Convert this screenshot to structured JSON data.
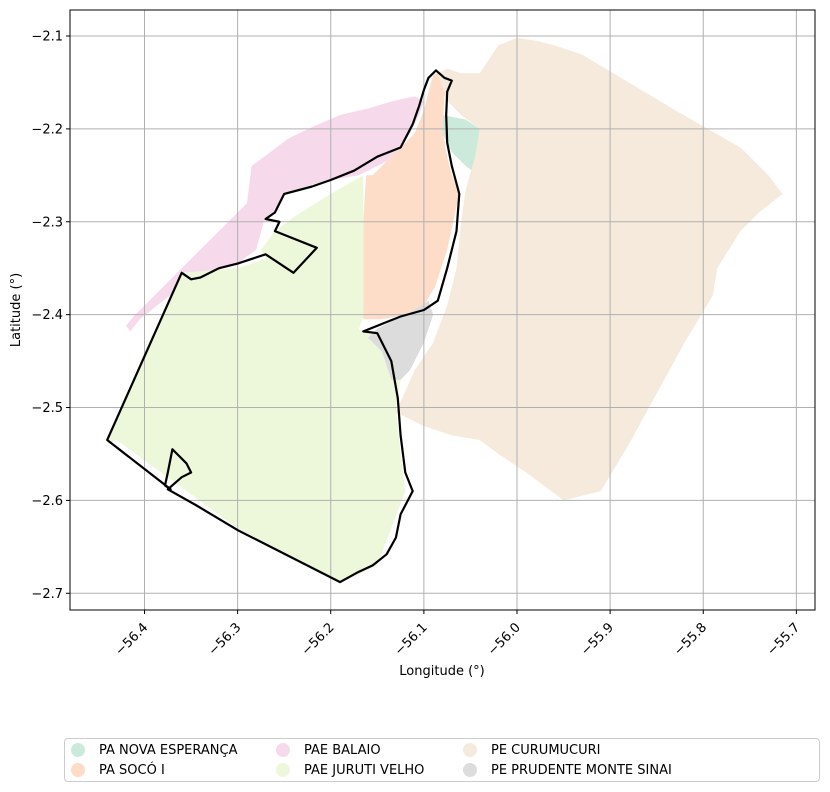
{
  "chart_data": {
    "type": "map",
    "xlabel": "Longitude (°)",
    "ylabel": "Latitude (°)",
    "xlim": [
      -56.48,
      -55.68
    ],
    "ylim": [
      -2.718,
      -2.072
    ],
    "grid": true,
    "xticks": [
      -56.4,
      -56.3,
      -56.2,
      -56.1,
      -56.0,
      -55.9,
      -55.8,
      -55.7
    ],
    "yticks": [
      -2.1,
      -2.2,
      -2.3,
      -2.4,
      -2.5,
      -2.6,
      -2.7
    ],
    "xtick_labels": [
      "−56.4",
      "−56.3",
      "−56.2",
      "−56.1",
      "−56.0",
      "−55.9",
      "−55.8",
      "−55.7"
    ],
    "ytick_labels": [
      "−2.1",
      "−2.2",
      "−2.3",
      "−2.4",
      "−2.5",
      "−2.6",
      "−2.7"
    ],
    "legend_position": "bottom",
    "layers": [
      {
        "name": "PA NOVA ESPERANÇA",
        "color": "#cbeadc",
        "polygon": [
          [
            -56.08,
            -2.185
          ],
          [
            -56.055,
            -2.19
          ],
          [
            -56.04,
            -2.2
          ],
          [
            -56.02,
            -2.195
          ],
          [
            -55.985,
            -2.2
          ],
          [
            -55.99,
            -2.215
          ],
          [
            -56.01,
            -2.22
          ],
          [
            -56.02,
            -2.25
          ],
          [
            -56.035,
            -2.255
          ],
          [
            -56.055,
            -2.24
          ],
          [
            -56.07,
            -2.225
          ],
          [
            -56.08,
            -2.205
          ]
        ]
      },
      {
        "name": "PA SOCÓ I",
        "color": "#fddcc8",
        "polygon": [
          [
            -56.155,
            -2.25
          ],
          [
            -56.14,
            -2.235
          ],
          [
            -56.125,
            -2.22
          ],
          [
            -56.11,
            -2.205
          ],
          [
            -56.1,
            -2.18
          ],
          [
            -56.095,
            -2.16
          ],
          [
            -56.09,
            -2.142
          ],
          [
            -56.078,
            -2.137
          ],
          [
            -56.07,
            -2.15
          ],
          [
            -56.078,
            -2.165
          ],
          [
            -56.08,
            -2.2
          ],
          [
            -56.075,
            -2.23
          ],
          [
            -56.07,
            -2.25
          ],
          [
            -56.062,
            -2.27
          ],
          [
            -56.075,
            -2.33
          ],
          [
            -56.088,
            -2.37
          ],
          [
            -56.1,
            -2.39
          ],
          [
            -56.12,
            -2.4
          ],
          [
            -56.145,
            -2.405
          ],
          [
            -56.165,
            -2.405
          ],
          [
            -56.165,
            -2.3
          ],
          [
            -56.162,
            -2.25
          ]
        ]
      },
      {
        "name": "PAE BALAIO",
        "color": "#f6daec",
        "polygon": [
          [
            -56.415,
            -2.418
          ],
          [
            -56.405,
            -2.405
          ],
          [
            -56.38,
            -2.385
          ],
          [
            -56.36,
            -2.37
          ],
          [
            -56.33,
            -2.355
          ],
          [
            -56.3,
            -2.345
          ],
          [
            -56.28,
            -2.33
          ],
          [
            -56.272,
            -2.3
          ],
          [
            -56.262,
            -2.29
          ],
          [
            -56.25,
            -2.27
          ],
          [
            -56.22,
            -2.26
          ],
          [
            -56.2,
            -2.255
          ],
          [
            -56.17,
            -2.25
          ],
          [
            -56.14,
            -2.235
          ],
          [
            -56.125,
            -2.22
          ],
          [
            -56.115,
            -2.205
          ],
          [
            -56.105,
            -2.185
          ],
          [
            -56.1,
            -2.17
          ],
          [
            -56.11,
            -2.165
          ],
          [
            -56.125,
            -2.168
          ],
          [
            -56.14,
            -2.172
          ],
          [
            -56.16,
            -2.178
          ],
          [
            -56.19,
            -2.185
          ],
          [
            -56.22,
            -2.198
          ],
          [
            -56.245,
            -2.21
          ],
          [
            -56.265,
            -2.225
          ],
          [
            -56.285,
            -2.24
          ],
          [
            -56.29,
            -2.28
          ],
          [
            -56.31,
            -2.3
          ],
          [
            -56.33,
            -2.32
          ],
          [
            -56.36,
            -2.35
          ],
          [
            -56.39,
            -2.38
          ],
          [
            -56.41,
            -2.4
          ],
          [
            -56.42,
            -2.412
          ]
        ]
      },
      {
        "name": "PAE JURUTI VELHO",
        "color": "#edf8db",
        "polygon": [
          [
            -56.165,
            -2.25
          ],
          [
            -56.165,
            -2.403
          ],
          [
            -56.17,
            -2.416
          ],
          [
            -56.15,
            -2.42
          ],
          [
            -56.135,
            -2.44
          ],
          [
            -56.125,
            -2.47
          ],
          [
            -56.13,
            -2.5
          ],
          [
            -56.125,
            -2.55
          ],
          [
            -56.12,
            -2.59
          ],
          [
            -56.135,
            -2.63
          ],
          [
            -56.15,
            -2.67
          ],
          [
            -56.17,
            -2.68
          ],
          [
            -56.19,
            -2.688
          ],
          [
            -56.3,
            -2.63
          ],
          [
            -56.43,
            -2.535
          ],
          [
            -56.44,
            -2.54
          ],
          [
            -56.4,
            -2.44
          ],
          [
            -56.36,
            -2.355
          ],
          [
            -56.3,
            -2.35
          ],
          [
            -56.27,
            -2.34
          ],
          [
            -56.275,
            -2.33
          ],
          [
            -56.26,
            -2.31
          ],
          [
            -56.24,
            -2.295
          ],
          [
            -56.2,
            -2.27
          ]
        ]
      },
      {
        "name": "PE CURUMUCURI",
        "color": "#f5eadb",
        "polygon": [
          [
            -56.085,
            -2.14
          ],
          [
            -56.075,
            -2.135
          ],
          [
            -56.06,
            -2.14
          ],
          [
            -56.04,
            -2.14
          ],
          [
            -56.02,
            -2.11
          ],
          [
            -56.0,
            -2.102
          ],
          [
            -55.98,
            -2.105
          ],
          [
            -55.96,
            -2.11
          ],
          [
            -55.93,
            -2.12
          ],
          [
            -55.88,
            -2.15
          ],
          [
            -55.83,
            -2.18
          ],
          [
            -55.76,
            -2.22
          ],
          [
            -55.73,
            -2.25
          ],
          [
            -55.715,
            -2.27
          ],
          [
            -55.74,
            -2.29
          ],
          [
            -55.76,
            -2.31
          ],
          [
            -55.785,
            -2.35
          ],
          [
            -55.79,
            -2.38
          ],
          [
            -55.82,
            -2.43
          ],
          [
            -55.88,
            -2.54
          ],
          [
            -55.91,
            -2.59
          ],
          [
            -55.95,
            -2.6
          ],
          [
            -55.99,
            -2.57
          ],
          [
            -56.02,
            -2.55
          ],
          [
            -56.04,
            -2.535
          ],
          [
            -56.07,
            -2.53
          ],
          [
            -56.1,
            -2.52
          ],
          [
            -56.13,
            -2.505
          ],
          [
            -56.11,
            -2.46
          ],
          [
            -56.09,
            -2.43
          ],
          [
            -56.075,
            -2.39
          ],
          [
            -56.065,
            -2.35
          ],
          [
            -56.06,
            -2.3
          ],
          [
            -56.055,
            -2.265
          ],
          [
            -56.045,
            -2.23
          ],
          [
            -56.04,
            -2.2
          ],
          [
            -56.06,
            -2.185
          ],
          [
            -56.075,
            -2.17
          ]
        ]
      },
      {
        "name": "PE PRUDENTE MONTE SINAI",
        "color": "#dcdcdc",
        "polygon": [
          [
            -56.15,
            -2.415
          ],
          [
            -56.13,
            -2.405
          ],
          [
            -56.11,
            -2.395
          ],
          [
            -56.095,
            -2.385
          ],
          [
            -56.09,
            -2.4
          ],
          [
            -56.1,
            -2.43
          ],
          [
            -56.115,
            -2.46
          ],
          [
            -56.125,
            -2.47
          ],
          [
            -56.135,
            -2.47
          ],
          [
            -56.145,
            -2.44
          ],
          [
            -56.16,
            -2.425
          ]
        ]
      }
    ],
    "outline": {
      "color": "#000000",
      "polygon": [
        [
          -56.44,
          -2.535
        ],
        [
          -56.36,
          -2.355
        ],
        [
          -56.35,
          -2.362
        ],
        [
          -56.34,
          -2.36
        ],
        [
          -56.32,
          -2.35
        ],
        [
          -56.3,
          -2.345
        ],
        [
          -56.27,
          -2.335
        ],
        [
          -56.24,
          -2.355
        ],
        [
          -56.215,
          -2.328
        ],
        [
          -56.26,
          -2.31
        ],
        [
          -56.255,
          -2.3
        ],
        [
          -56.27,
          -2.297
        ],
        [
          -56.26,
          -2.29
        ],
        [
          -56.25,
          -2.27
        ],
        [
          -56.22,
          -2.262
        ],
        [
          -56.2,
          -2.255
        ],
        [
          -56.175,
          -2.245
        ],
        [
          -56.15,
          -2.23
        ],
        [
          -56.125,
          -2.22
        ],
        [
          -56.112,
          -2.195
        ],
        [
          -56.105,
          -2.175
        ],
        [
          -56.1,
          -2.158
        ],
        [
          -56.095,
          -2.145
        ],
        [
          -56.087,
          -2.137
        ],
        [
          -56.078,
          -2.145
        ],
        [
          -56.07,
          -2.148
        ],
        [
          -56.075,
          -2.16
        ],
        [
          -56.076,
          -2.185
        ],
        [
          -56.075,
          -2.215
        ],
        [
          -56.07,
          -2.24
        ],
        [
          -56.062,
          -2.27
        ],
        [
          -56.065,
          -2.31
        ],
        [
          -56.075,
          -2.35
        ],
        [
          -56.085,
          -2.385
        ],
        [
          -56.1,
          -2.395
        ],
        [
          -56.125,
          -2.402
        ],
        [
          -56.145,
          -2.41
        ],
        [
          -56.165,
          -2.418
        ],
        [
          -56.15,
          -2.42
        ],
        [
          -56.135,
          -2.45
        ],
        [
          -56.128,
          -2.49
        ],
        [
          -56.125,
          -2.53
        ],
        [
          -56.12,
          -2.57
        ],
        [
          -56.112,
          -2.59
        ],
        [
          -56.125,
          -2.615
        ],
        [
          -56.13,
          -2.64
        ],
        [
          -56.14,
          -2.658
        ],
        [
          -56.155,
          -2.67
        ],
        [
          -56.172,
          -2.678
        ],
        [
          -56.19,
          -2.688
        ],
        [
          -56.3,
          -2.632
        ],
        [
          -56.345,
          -2.605
        ],
        [
          -56.375,
          -2.588
        ],
        [
          -56.36,
          -2.575
        ],
        [
          -56.35,
          -2.57
        ],
        [
          -56.355,
          -2.56
        ],
        [
          -56.365,
          -2.55
        ],
        [
          -56.37,
          -2.545
        ],
        [
          -56.375,
          -2.57
        ],
        [
          -56.378,
          -2.584
        ],
        [
          -56.372,
          -2.588
        ]
      ]
    },
    "legend": [
      {
        "label": "PA NOVA ESPERANÇA",
        "color": "#cbeadc"
      },
      {
        "label": "PA SOCÓ I",
        "color": "#fddcc8"
      },
      {
        "label": "PAE BALAIO",
        "color": "#f6daec"
      },
      {
        "label": "PAE JURUTI VELHO",
        "color": "#edf8db"
      },
      {
        "label": "PE CURUMUCURI",
        "color": "#f5eadb"
      },
      {
        "label": "PE PRUDENTE MONTE SINAI",
        "color": "#dcdcdc"
      }
    ]
  }
}
